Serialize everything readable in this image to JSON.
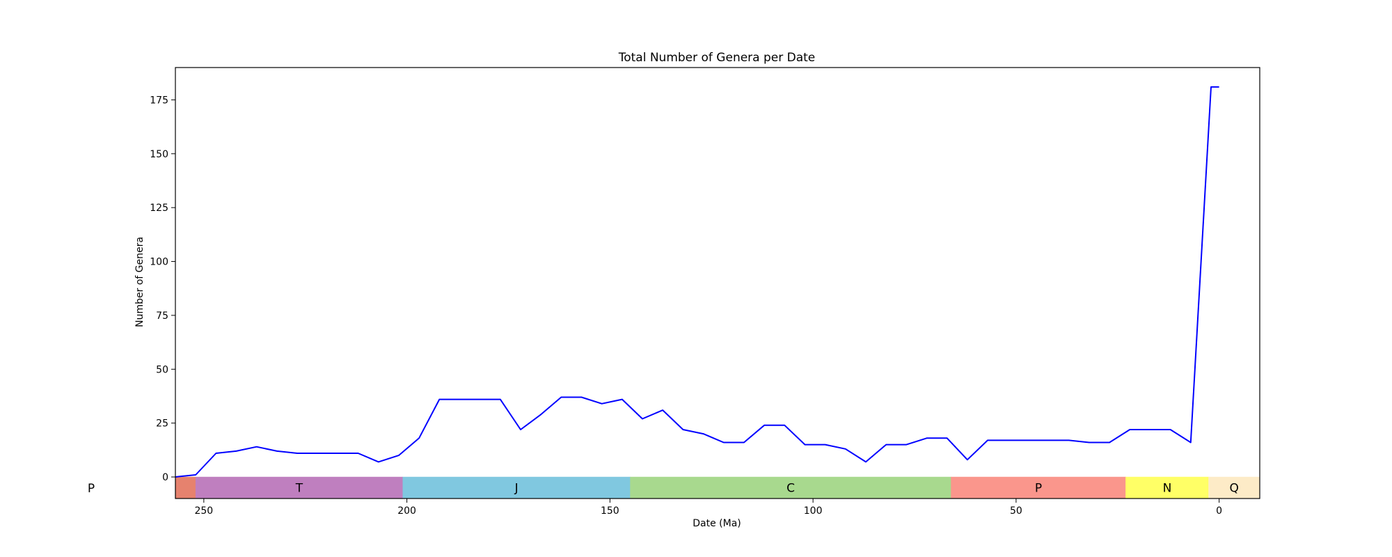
{
  "chart_data": {
    "type": "line",
    "title": "Total Number of Genera per Date",
    "xlabel": "Date (Ma)",
    "ylabel": "Number of Genera",
    "xlim": [
      257,
      -10
    ],
    "ylim": [
      -10,
      190
    ],
    "x_inverted": true,
    "grid": false,
    "xticks": [
      250,
      200,
      150,
      100,
      50,
      0
    ],
    "yticks": [
      0,
      25,
      50,
      75,
      100,
      125,
      150,
      175
    ],
    "line_color": "#0000ff",
    "series": [
      {
        "x": [
          257,
          252,
          247,
          242,
          237,
          232,
          227,
          222,
          217,
          212,
          207,
          202,
          197,
          192,
          187,
          182,
          177,
          172,
          167,
          162,
          157,
          152,
          147,
          142,
          137,
          132,
          127,
          122,
          117,
          112,
          107,
          102,
          97,
          92,
          87,
          82,
          77,
          72,
          67,
          62,
          57,
          52,
          47,
          42,
          37,
          32,
          27,
          22,
          17,
          12,
          7,
          2,
          0
        ],
        "y": [
          0,
          1,
          11,
          12,
          14,
          12,
          11,
          11,
          11,
          11,
          7,
          10,
          18,
          36,
          36,
          36,
          36,
          22,
          29,
          37,
          37,
          34,
          36,
          27,
          31,
          22,
          20,
          16,
          16,
          24,
          24,
          15,
          15,
          13,
          7,
          15,
          15,
          18,
          18,
          8,
          17,
          17,
          17,
          17,
          17,
          16,
          16,
          22,
          22,
          22,
          16,
          181,
          181
        ]
      }
    ],
    "periods": [
      {
        "label": "",
        "start": 257,
        "end": 252,
        "color": "#e6826e"
      },
      {
        "label": "T",
        "start": 252,
        "end": 201,
        "color": "#bf7fbf"
      },
      {
        "label": "J",
        "start": 201,
        "end": 145,
        "color": "#80c8e0"
      },
      {
        "label": "C",
        "start": 145,
        "end": 66,
        "color": "#a8d98e"
      },
      {
        "label": "P",
        "start": 66,
        "end": 23,
        "color": "#fa968c"
      },
      {
        "label": "N",
        "start": 23,
        "end": 2.6,
        "color": "#ffff66"
      },
      {
        "label": "Q",
        "start": 2.6,
        "end": -10,
        "color": "#fdebc7"
      }
    ],
    "outer_label": "P"
  }
}
